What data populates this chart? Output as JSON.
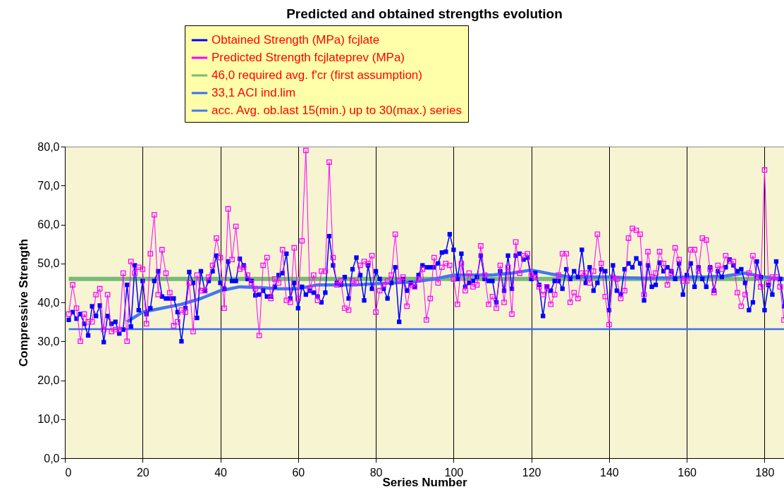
{
  "chart_data": {
    "type": "line",
    "title": "Predicted and obtained strengths evolution",
    "xlabel": "Series Number",
    "ylabel": "Compressive Strength",
    "x": [
      1,
      2,
      3,
      4,
      5,
      6,
      7,
      8,
      9,
      10,
      11,
      12,
      13,
      14,
      15,
      16,
      17,
      18,
      19,
      20,
      21,
      22,
      23,
      24,
      25,
      26,
      27,
      28,
      29,
      30,
      31,
      32,
      33,
      34,
      35,
      36,
      37,
      38,
      39,
      40,
      41,
      42,
      43,
      44,
      45,
      46,
      47,
      48,
      49,
      50,
      51,
      52,
      53,
      54,
      55,
      56,
      57,
      58,
      59,
      60,
      61,
      62,
      63,
      64,
      65,
      66,
      67,
      68,
      69,
      70,
      71,
      72,
      73,
      74,
      75,
      76,
      77,
      78,
      79,
      80,
      81,
      82,
      83,
      84,
      85,
      86,
      87,
      88,
      89,
      90,
      91,
      92,
      93,
      94,
      95,
      96,
      97,
      98,
      99,
      100,
      101,
      102,
      103,
      104,
      105,
      106,
      107,
      108,
      109,
      110,
      111,
      112,
      113,
      114,
      115,
      116,
      117,
      118,
      119,
      120,
      121,
      122,
      123,
      124,
      125,
      126,
      127,
      128,
      129,
      130,
      131,
      132,
      133,
      134,
      135,
      136,
      137,
      138,
      139,
      140,
      141,
      142,
      143,
      144,
      145,
      146,
      147,
      148,
      149,
      150,
      151,
      152,
      153,
      154,
      155,
      156,
      157,
      158,
      159,
      160,
      161,
      162,
      163,
      164,
      165,
      166,
      167,
      168,
      169,
      170,
      171,
      172,
      173,
      174,
      175,
      176,
      177,
      178,
      179,
      180,
      181,
      182,
      183,
      184,
      185
    ],
    "series": [
      {
        "name": "Obtained Strength (MPa) fcjlate",
        "color": "#0000ff",
        "marker": "square",
        "values": [
          35.5,
          37.5,
          35.8,
          37,
          34.5,
          31.5,
          39,
          36.5,
          39.2,
          29.8,
          36.5,
          34.5,
          35,
          32,
          33,
          44.5,
          33.8,
          49.5,
          38,
          45.5,
          37,
          38.5,
          45.5,
          48,
          41.5,
          41,
          41,
          41,
          37.5,
          30,
          38.5,
          47.8,
          45,
          36,
          48,
          43,
          45.5,
          48,
          52,
          45,
          43.5,
          50.5,
          45.5,
          45.5,
          51.2,
          49.5,
          46,
          45.5,
          41.8,
          42,
          43,
          41.5,
          41.5,
          44,
          47,
          47.5,
          52.5,
          41,
          45,
          38.5,
          44,
          42,
          43,
          42.5,
          41.5,
          40,
          42.5,
          57,
          49.5,
          45,
          44.5,
          46.5,
          41,
          48.5,
          51.5,
          47,
          40.5,
          49.5,
          43.5,
          48,
          46,
          43.5,
          41,
          45,
          49,
          35,
          46,
          43,
          45,
          44,
          47,
          49.5,
          49,
          49,
          49,
          50,
          52.8,
          53,
          57.5,
          53.5,
          46,
          52.5,
          44,
          45,
          45.5,
          46.5,
          52,
          46,
          45.5,
          45.5,
          40,
          48,
          43,
          52,
          43.5,
          52,
          52.5,
          51,
          51.5,
          46,
          47.5,
          44.5,
          36.5,
          44,
          43,
          45.5,
          45.5,
          43.5,
          48.5,
          46,
          48,
          46.5,
          53.5,
          45,
          49,
          43,
          45,
          48.5,
          48,
          38,
          49.5,
          43,
          42,
          48.5,
          50,
          49,
          51.3,
          50,
          40.5,
          49.5,
          44,
          44.5,
          50.2,
          48,
          49,
          48,
          46,
          50,
          42,
          47,
          50,
          44,
          49,
          46,
          44,
          49,
          43,
          48,
          46.5,
          49,
          51,
          49.5,
          48,
          48.5,
          45,
          38,
          40,
          50.5,
          46.5,
          38,
          44.5,
          42,
          50.5,
          46,
          39
        ]
      },
      {
        "name": "Predicted Strength fcjlateprev (MPa)",
        "color": "#ff00ff",
        "marker": "square",
        "values": [
          37,
          44.5,
          38.5,
          30,
          37,
          35,
          35,
          42,
          43.5,
          33,
          42,
          32.5,
          33,
          33,
          47.5,
          30,
          50.5,
          47.5,
          49,
          48.5,
          34.5,
          52.5,
          62.5,
          42,
          53.5,
          47.5,
          42.5,
          34,
          35,
          38,
          37.5,
          45,
          32.5,
          47,
          43,
          43,
          46.5,
          49.5,
          56.5,
          51.5,
          38.5,
          64,
          51,
          59.5,
          48.5,
          49,
          47,
          45,
          43.5,
          31.5,
          49.5,
          51.5,
          41,
          46,
          45,
          53.5,
          40.5,
          40,
          54,
          41,
          55.8,
          79,
          43.5,
          47,
          40.5,
          48,
          48,
          76,
          51.5,
          44.5,
          45.5,
          38.5,
          38,
          45.5,
          45,
          49.5,
          50.5,
          50,
          52,
          37.5,
          43,
          44.5,
          45.5,
          47,
          57.5,
          45.5,
          46.5,
          39,
          44.5,
          44,
          46,
          48.5,
          35.5,
          41,
          51.5,
          45,
          49,
          50,
          49.5,
          46,
          39.5,
          50,
          43,
          47.5,
          44,
          44.5,
          54.5,
          47,
          39.5,
          41.5,
          38.5,
          49.5,
          40,
          49,
          37,
          55.5,
          47.5,
          52,
          52.5,
          47,
          46.5,
          44,
          42,
          44,
          39.5,
          42,
          47,
          52.5,
          52.5,
          40,
          42.5,
          41,
          47.5,
          47.5,
          45,
          48,
          57.5,
          50,
          41.5,
          34.3,
          46.5,
          46,
          41,
          43,
          56.5,
          59,
          58.5,
          57.5,
          42,
          53,
          46.5,
          47.5,
          53,
          50,
          44.5,
          47.5,
          54,
          51,
          45.5,
          45.5,
          53.5,
          53.5,
          48,
          56.5,
          56,
          48.5,
          42.5,
          49.5,
          48.5,
          52,
          50.5,
          50.5,
          42.5,
          39,
          42,
          47.5,
          52,
          46.5,
          44,
          74,
          45,
          46.5,
          46.5,
          44,
          35.5
        ]
      },
      {
        "name": "46,0 required avg. f'cr (first assumption)",
        "color": "#77bb77",
        "x": [
          1,
          185
        ],
        "values": [
          46,
          46
        ]
      },
      {
        "name": "33,1 ACI ind.lim",
        "color": "#3a6ff0",
        "x": [
          1,
          185
        ],
        "values": [
          33.1,
          33.1
        ]
      },
      {
        "name": "acc. Avg. ob.last 15(min.) up to 30(max.) series",
        "color": "#4477ee",
        "x": [
          16,
          20,
          25,
          30,
          35,
          40,
          45,
          50,
          55,
          60,
          65,
          70,
          75,
          80,
          85,
          90,
          95,
          100,
          105,
          110,
          115,
          120,
          125,
          130,
          135,
          140,
          145,
          150,
          155,
          160,
          165,
          170,
          175,
          180,
          185
        ],
        "values": [
          35,
          37.5,
          38.5,
          39.5,
          41,
          43,
          44,
          43.8,
          43.5,
          43.5,
          44.5,
          44.5,
          44.5,
          44.8,
          45,
          45.3,
          46,
          47,
          47,
          47,
          47.5,
          48.3,
          47.3,
          46.5,
          46.5,
          46.5,
          46.3,
          46.2,
          46.3,
          46.5,
          46.5,
          46.8,
          47.5,
          46.5,
          46
        ]
      }
    ],
    "xlim": [
      0,
      185
    ],
    "xticks": [
      0,
      20,
      40,
      60,
      80,
      100,
      120,
      140,
      160,
      180
    ],
    "ylim": [
      0,
      80
    ],
    "yticks": [
      {
        "value": 0,
        "label": "0,0"
      },
      {
        "value": 10,
        "label": "10,0"
      },
      {
        "value": 20,
        "label": "20,0"
      },
      {
        "value": 30,
        "label": "30,0"
      },
      {
        "value": 40,
        "label": "40,0"
      },
      {
        "value": 50,
        "label": "50,0"
      },
      {
        "value": 60,
        "label": "60,0"
      },
      {
        "value": 70,
        "label": "70,0"
      },
      {
        "value": 80,
        "label": "80,0"
      }
    ],
    "grid": "x",
    "legend": "top"
  }
}
